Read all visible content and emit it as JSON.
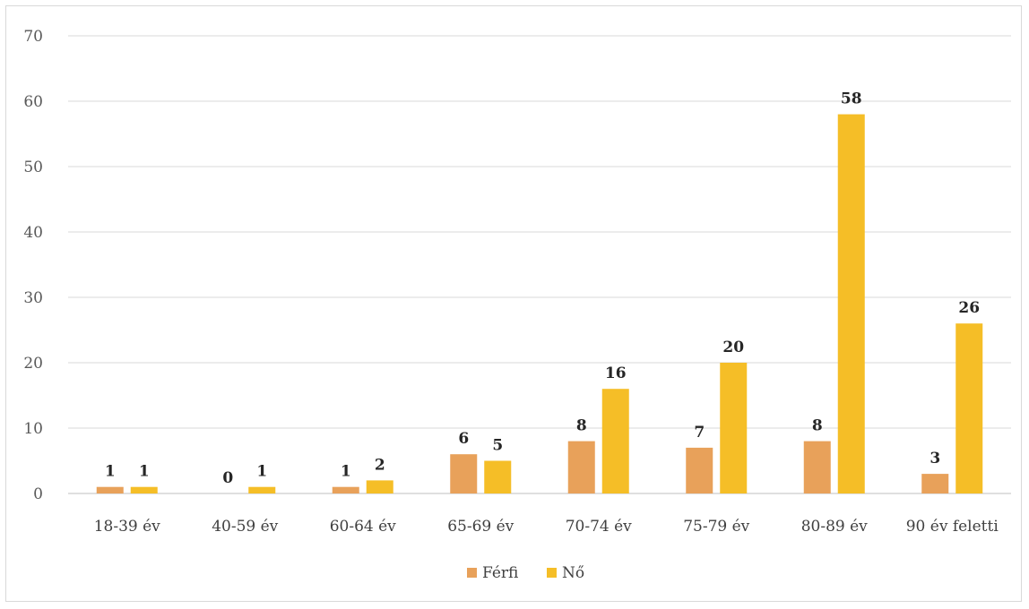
{
  "chart_data": {
    "type": "bar",
    "categories": [
      "18-39 év",
      "40-59 év",
      "60-64 év",
      "65-69 év",
      "70-74 év",
      "75-79 év",
      "80-89 év",
      "90 év feletti"
    ],
    "series": [
      {
        "name": "Férfi",
        "color": "#e8a15a",
        "values": [
          1,
          0,
          1,
          6,
          8,
          7,
          8,
          3
        ]
      },
      {
        "name": "Nő",
        "color": "#f5be27",
        "values": [
          1,
          1,
          2,
          5,
          16,
          20,
          58,
          26
        ]
      }
    ],
    "ylim": [
      0,
      70
    ],
    "yticks": [
      0,
      10,
      20,
      30,
      40,
      50,
      60,
      70
    ],
    "grid": true,
    "legend": "bottom-center",
    "data_labels": true
  }
}
